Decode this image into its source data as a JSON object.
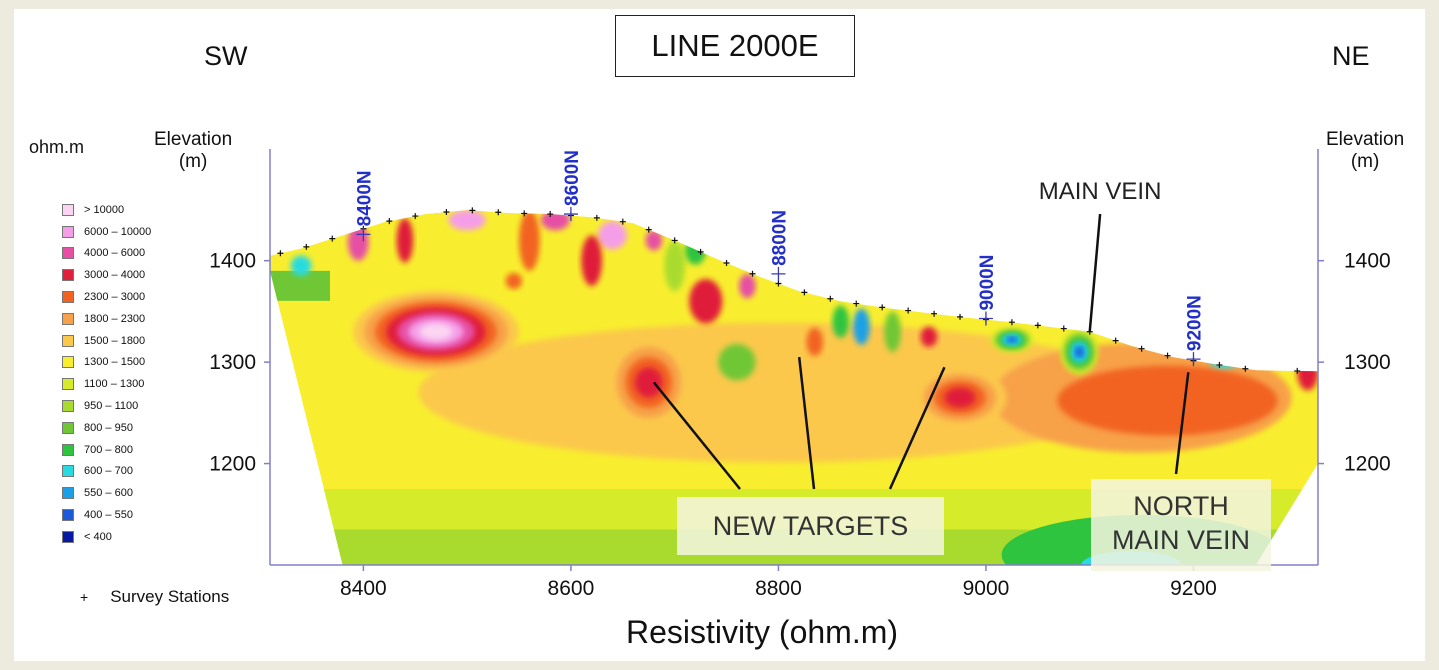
{
  "title": "LINE 2000E",
  "corners": {
    "left": "SW",
    "right": "NE"
  },
  "legend_unit": "ohm.m",
  "chart_data": {
    "type": "heatmap",
    "title": "LINE 2000E",
    "xlabel": "Resistivity (ohm.m)",
    "ylabel_left": "Elevation\n(m)",
    "ylabel_right": "Elevation\n(m)",
    "xlim": [
      8310,
      9320
    ],
    "ylim": [
      1100,
      1520
    ],
    "x_ticks": [
      8400,
      8600,
      8800,
      9000,
      9200
    ],
    "y_ticks": [
      1200,
      1300,
      1400
    ],
    "legend": [
      {
        "label": "> 10000",
        "color": "#fbd5f3"
      },
      {
        "label": "6000 – 10000",
        "color": "#f59ee8"
      },
      {
        "label": "4000 – 6000",
        "color": "#e64fa4"
      },
      {
        "label": "3000 – 4000",
        "color": "#e01f3a"
      },
      {
        "label": "2300 – 3000",
        "color": "#f26322"
      },
      {
        "label": "1800 – 2300",
        "color": "#f7a14a"
      },
      {
        "label": "1500 – 1800",
        "color": "#fbc84c"
      },
      {
        "label": "1300 – 1500",
        "color": "#f8ee2f"
      },
      {
        "label": "1100 – 1300",
        "color": "#d6ec2b"
      },
      {
        "label": "950 – 1100",
        "color": "#a9db2e"
      },
      {
        "label": "800 – 950",
        "color": "#70c735"
      },
      {
        "label": "700 – 800",
        "color": "#2ec43f"
      },
      {
        "label": "600 – 700",
        "color": "#28dbe0"
      },
      {
        "label": "550 – 600",
        "color": "#1ba0e6"
      },
      {
        "label": "400 – 550",
        "color": "#1a5ad8"
      },
      {
        "label": "< 400",
        "color": "#0a1aa0"
      }
    ],
    "topography": [
      [
        8310,
        1405
      ],
      [
        8340,
        1412
      ],
      [
        8380,
        1425
      ],
      [
        8420,
        1438
      ],
      [
        8460,
        1446
      ],
      [
        8500,
        1450
      ],
      [
        8540,
        1447
      ],
      [
        8580,
        1446
      ],
      [
        8620,
        1443
      ],
      [
        8660,
        1437
      ],
      [
        8700,
        1420
      ],
      [
        8740,
        1402
      ],
      [
        8780,
        1385
      ],
      [
        8820,
        1370
      ],
      [
        8860,
        1360
      ],
      [
        8900,
        1354
      ],
      [
        8940,
        1349
      ],
      [
        8980,
        1344
      ],
      [
        9020,
        1340
      ],
      [
        9060,
        1335
      ],
      [
        9100,
        1330
      ],
      [
        9140,
        1316
      ],
      [
        9180,
        1305
      ],
      [
        9220,
        1298
      ],
      [
        9260,
        1292
      ],
      [
        9320,
        1291
      ]
    ],
    "stations": [
      {
        "label": "8400N",
        "x": 8400,
        "y": 1426
      },
      {
        "label": "8600N",
        "x": 8600,
        "y": 1446
      },
      {
        "label": "8800N",
        "x": 8800,
        "y": 1387
      },
      {
        "label": "9000N",
        "x": 9000,
        "y": 1343
      },
      {
        "label": "9200N",
        "x": 9200,
        "y": 1303
      }
    ],
    "survey_station_x": [
      8320,
      8345,
      8370,
      8400,
      8425,
      8450,
      8480,
      8505,
      8530,
      8555,
      8580,
      8600,
      8625,
      8650,
      8675,
      8700,
      8725,
      8750,
      8775,
      8800,
      8825,
      8850,
      8875,
      8900,
      8925,
      8950,
      8975,
      9000,
      9025,
      9050,
      9075,
      9100,
      9125,
      9150,
      9175,
      9200,
      9225,
      9250,
      9300
    ],
    "annotations": [
      {
        "text": "MAIN VEIN",
        "x": 9100,
        "y": 1330
      },
      {
        "text": "NEW TARGETS",
        "targets": [
          [
            8680,
            1280
          ],
          [
            8820,
            1305
          ],
          [
            8960,
            1295
          ]
        ]
      },
      {
        "text": "NORTH\nMAIN VEIN",
        "x": 9195,
        "y": 1290
      }
    ],
    "anomalies": [
      {
        "x": 8470,
        "y": 1330,
        "rx": 80,
        "ry": 40,
        "peak": "> 10000"
      },
      {
        "x": 8675,
        "y": 1280,
        "rx": 40,
        "ry": 45,
        "peak": "3000 – 4000"
      },
      {
        "x": 8975,
        "y": 1265,
        "rx": 45,
        "ry": 30,
        "peak": "3000 – 4000"
      },
      {
        "x": 9090,
        "y": 1310,
        "rx": 18,
        "ry": 22,
        "peak": "400 – 550"
      },
      {
        "x": 9025,
        "y": 1322,
        "rx": 20,
        "ry": 12,
        "peak": "400 – 550"
      }
    ]
  },
  "target_labels": {
    "main_vein": "MAIN VEIN",
    "new_targets": "NEW TARGETS",
    "north_main_vein_1": "NORTH",
    "north_main_vein_2": "MAIN VEIN"
  },
  "axis_left": {
    "line1": "Elevation",
    "line2": "(m)"
  },
  "axis_right": {
    "line1": "Elevation",
    "line2": "(m)"
  },
  "survey_legend": {
    "symbol": "+",
    "label": "Survey Stations"
  },
  "x_axis_title": "Resistivity (ohm.m)"
}
